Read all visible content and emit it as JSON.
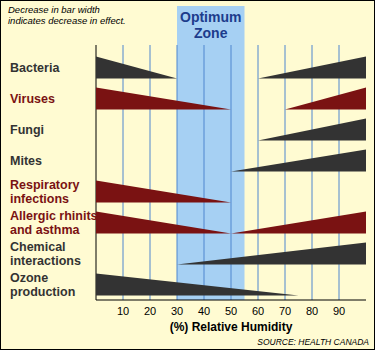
{
  "chart_data": {
    "type": "range",
    "orientation": "horizontal",
    "annotations": {
      "note": "Decrease in bar width\nindicates decrease in effect.",
      "optimum_zone": {
        "label": "Optimum\nZone",
        "from": 30,
        "to": 55
      },
      "source": "SOURCE: HEALTH CANADA"
    },
    "x_label": "(%) Relative Humidity",
    "xlim": [
      0,
      100
    ],
    "xticks": [
      10,
      20,
      30,
      40,
      50,
      60,
      70,
      80,
      90
    ],
    "grid": true,
    "tick_labels": "x",
    "series": [
      {
        "name": "Bacteria",
        "color": "#333333",
        "ranges": [
          {
            "from": 0,
            "to": 30
          },
          {
            "from": 100,
            "to": 60
          }
        ]
      },
      {
        "name": "Viruses",
        "color": "#7a1212",
        "ranges": [
          {
            "from": 0,
            "to": 50
          },
          {
            "from": 100,
            "to": 70
          }
        ]
      },
      {
        "name": "Fungi",
        "color": "#333333",
        "ranges": [
          {
            "from": 100,
            "to": 60
          }
        ]
      },
      {
        "name": "Mites",
        "color": "#333333",
        "ranges": [
          {
            "from": 100,
            "to": 50
          }
        ]
      },
      {
        "name": "Respiratory\ninfections",
        "color": "#7a1212",
        "ranges": [
          {
            "from": 0,
            "to": 50
          }
        ]
      },
      {
        "name": "Allergic rhinits\nand asthma",
        "color": "#7a1212",
        "ranges": [
          {
            "from": 0,
            "to": 50
          },
          {
            "from": 100,
            "to": 50
          }
        ]
      },
      {
        "name": "Chemical\ninteractions",
        "color": "#333333",
        "ranges": [
          {
            "from": 100,
            "to": 30
          }
        ]
      },
      {
        "name": "Ozone\nproduction",
        "color": "#333333",
        "ranges": [
          {
            "from": 0,
            "to": 75
          }
        ]
      }
    ]
  }
}
